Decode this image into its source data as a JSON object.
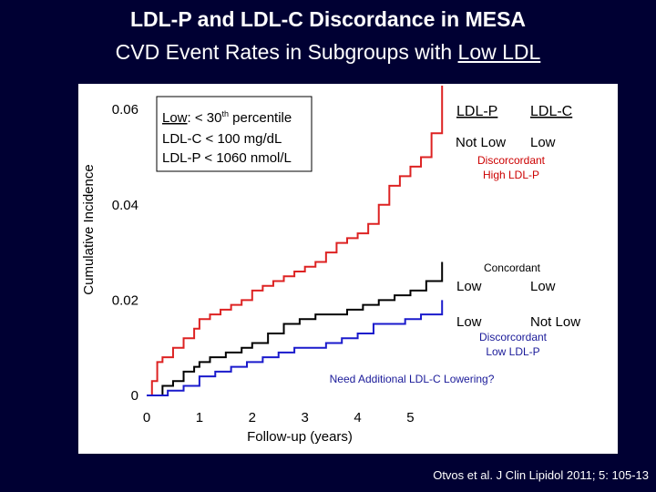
{
  "title": {
    "line1": "LDL-P and LDL-C Discordance in MESA",
    "line2_prefix": "CVD Event Rates in Subgroups with ",
    "line2_underlined": "Low LDL"
  },
  "legend_box": {
    "line1_a": "Low",
    "line1_b": ": < 30",
    "line1_sup": "th",
    "line1_c": " percentile",
    "line2": "LDL-C < 100 mg/dL",
    "line3": "LDL-P < 1060 nmol/L"
  },
  "column_headers": {
    "ldlp": "LDL-P",
    "ldlc": "LDL-C"
  },
  "annotations": {
    "top_ldlp": "Not Low",
    "top_ldlc": "Low",
    "top_label": "Discorcordant\nHigh LDL-P",
    "mid_title": "Concordant",
    "mid_ldlp": "Low",
    "mid_ldlc": "Low",
    "bot_ldlp": "Low",
    "bot_ldlc": "Not Low",
    "bot_label": "Discorcordant\nLow LDL-P",
    "question": "Need Additional LDL-C Lowering?"
  },
  "colors": {
    "background": "#000033",
    "high_ldlp": "#dd2222",
    "concordant": "#000000",
    "low_ldlp": "#1a1acc",
    "label_red": "#cc0000",
    "label_blue": "#1a1a99"
  },
  "citation": "Otvos et al. J Clin Lipidol 2011; 5: 105-13",
  "chart_data": {
    "type": "line",
    "title": "",
    "xlabel": "Follow-up (years)",
    "ylabel": "Cumulative Incidence",
    "xlim": [
      0,
      5.7
    ],
    "ylim": [
      0,
      0.065
    ],
    "xticks": [
      "0",
      "1",
      "2",
      "3",
      "4",
      "5"
    ],
    "yticks": [
      "0",
      "0.02",
      "0.04",
      "0.06"
    ],
    "series": [
      {
        "name": "Discorcordant High LDL-P",
        "color": "#dd2222",
        "x": [
          0,
          0.1,
          0.2,
          0.3,
          0.5,
          0.7,
          0.9,
          1.0,
          1.2,
          1.4,
          1.6,
          1.8,
          2.0,
          2.2,
          2.4,
          2.6,
          2.8,
          3.0,
          3.2,
          3.4,
          3.6,
          3.8,
          4.0,
          4.2,
          4.4,
          4.6,
          4.8,
          5.0,
          5.2,
          5.4,
          5.6
        ],
        "values": [
          0,
          0.003,
          0.007,
          0.008,
          0.01,
          0.012,
          0.014,
          0.016,
          0.017,
          0.018,
          0.019,
          0.02,
          0.022,
          0.023,
          0.024,
          0.025,
          0.026,
          0.027,
          0.028,
          0.03,
          0.032,
          0.033,
          0.034,
          0.036,
          0.04,
          0.044,
          0.046,
          0.048,
          0.05,
          0.055,
          0.065
        ]
      },
      {
        "name": "Concordant",
        "color": "#000000",
        "x": [
          0,
          0.3,
          0.5,
          0.7,
          0.9,
          1.0,
          1.2,
          1.5,
          1.8,
          2.0,
          2.3,
          2.6,
          2.9,
          3.2,
          3.5,
          3.8,
          4.1,
          4.4,
          4.7,
          5.0,
          5.3,
          5.6
        ],
        "values": [
          0,
          0.002,
          0.003,
          0.005,
          0.006,
          0.007,
          0.008,
          0.009,
          0.01,
          0.011,
          0.013,
          0.015,
          0.016,
          0.017,
          0.017,
          0.018,
          0.019,
          0.02,
          0.021,
          0.022,
          0.024,
          0.028
        ]
      },
      {
        "name": "Discorcordant Low LDL-P",
        "color": "#1a1acc",
        "x": [
          0,
          0.4,
          0.7,
          1.0,
          1.3,
          1.6,
          1.9,
          2.2,
          2.5,
          2.8,
          3.1,
          3.4,
          3.7,
          4.0,
          4.3,
          4.6,
          4.9,
          5.2,
          5.6
        ],
        "values": [
          0,
          0.001,
          0.002,
          0.004,
          0.005,
          0.006,
          0.007,
          0.008,
          0.009,
          0.01,
          0.01,
          0.011,
          0.012,
          0.013,
          0.015,
          0.015,
          0.016,
          0.017,
          0.02
        ]
      }
    ]
  }
}
